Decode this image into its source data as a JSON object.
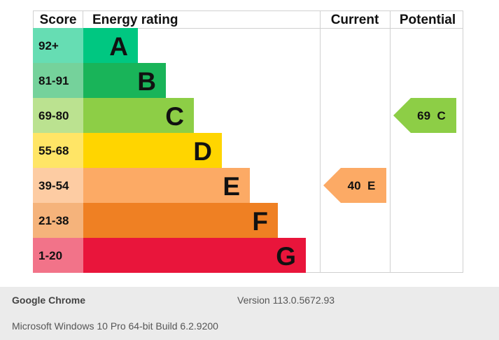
{
  "chart_data": {
    "type": "table",
    "headers": {
      "score": "Score",
      "rating": "Energy rating",
      "current": "Current",
      "potential": "Potential"
    },
    "bands": [
      {
        "score": "92+",
        "letter": "A",
        "color": "#00c781",
        "score_bg": "#66ddb3"
      },
      {
        "score": "81-91",
        "letter": "B",
        "color": "#19b459",
        "score_bg": "#75d29b"
      },
      {
        "score": "69-80",
        "letter": "C",
        "color": "#8dce46",
        "score_bg": "#bbe290"
      },
      {
        "score": "55-68",
        "letter": "D",
        "color": "#ffd500",
        "score_bg": "#ffe566"
      },
      {
        "score": "39-54",
        "letter": "E",
        "color": "#fcaa65",
        "score_bg": "#fdcca3"
      },
      {
        "score": "21-38",
        "letter": "F",
        "color": "#ef8023",
        "score_bg": "#f5b37b"
      },
      {
        "score": "1-20",
        "letter": "G",
        "color": "#e9153b",
        "score_bg": "#f27389"
      }
    ],
    "current": {
      "value": 40,
      "letter": "E",
      "label": "40  E",
      "color": "#fcaa65"
    },
    "potential": {
      "value": 69,
      "letter": "C",
      "label": "69  C",
      "color": "#8dce46"
    }
  },
  "footer": {
    "browser_name": "Google Chrome",
    "browser_version": "Version 113.0.5672.93",
    "os_info": "Microsoft Windows 10 Pro 64-bit Build 6.2.9200"
  }
}
